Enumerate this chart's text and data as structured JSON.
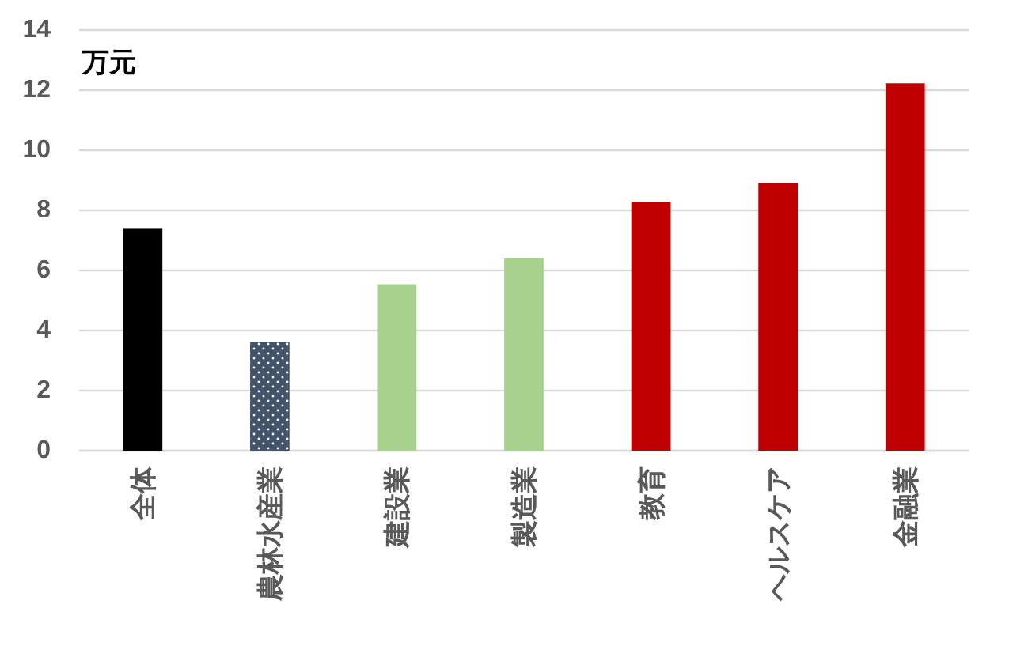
{
  "chart_data": {
    "type": "bar",
    "ylabel": "万元",
    "categories": [
      "全体",
      "農林水産業",
      "建設業",
      "製造業",
      "教育",
      "ヘルスケア",
      "金融業"
    ],
    "values": [
      7.41,
      3.62,
      5.54,
      6.42,
      8.29,
      8.91,
      12.23
    ],
    "colors": [
      "#000000",
      "#44546a",
      "#a9d18e",
      "#a9d18e",
      "#c00000",
      "#c00000",
      "#c00000"
    ],
    "ylim": [
      0,
      14
    ],
    "yticks": [
      0,
      2,
      4,
      6,
      8,
      10,
      12,
      14
    ],
    "grid": "y"
  }
}
